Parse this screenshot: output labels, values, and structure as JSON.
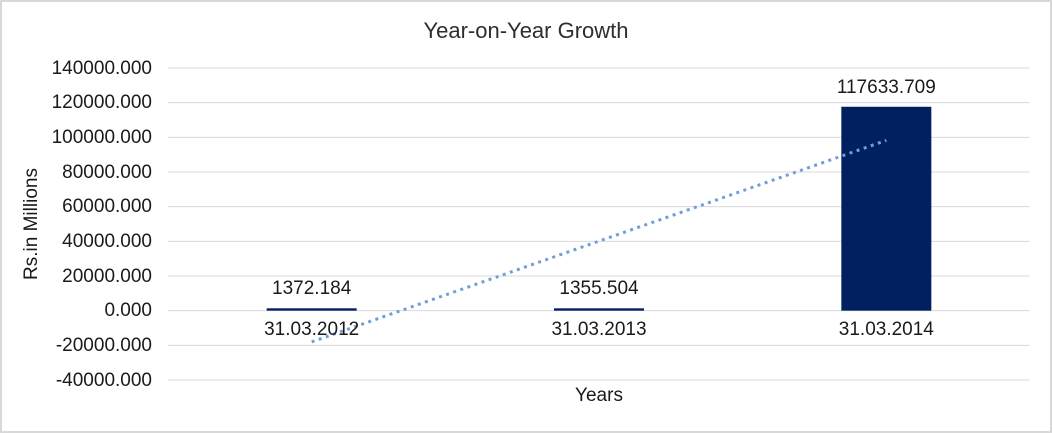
{
  "chart_data": {
    "type": "bar",
    "title": "Year-on-Year Growth",
    "xlabel": "Years",
    "ylabel": "Rs.in Millions",
    "categories": [
      "31.03.2012",
      "31.03.2013",
      "31.03.2014"
    ],
    "values": [
      1372.184,
      1355.504,
      117633.709
    ],
    "data_labels": [
      "1372.184",
      "1355.504",
      "117633.709"
    ],
    "ylim": [
      -40000,
      140000
    ],
    "ytick_step": 20000,
    "ytick_labels": [
      "140000.000",
      "120000.000",
      "100000.000",
      "80000.000",
      "60000.000",
      "40000.000",
      "20000.000",
      "0.000",
      "-20000.000",
      "-40000.000"
    ],
    "grid": true,
    "legend": "none",
    "trendline": {
      "type": "linear",
      "style": "dotted",
      "start_value": -18010.3,
      "end_value": 98251.2
    }
  },
  "colors": {
    "bar": "#002060",
    "trendline": "#6f9fd9",
    "gridline": "#d9d9d9",
    "text": "#1a1a1a",
    "title": "#2e2e2e",
    "frame_border": "#d8d8d8",
    "background": "#ffffff"
  }
}
